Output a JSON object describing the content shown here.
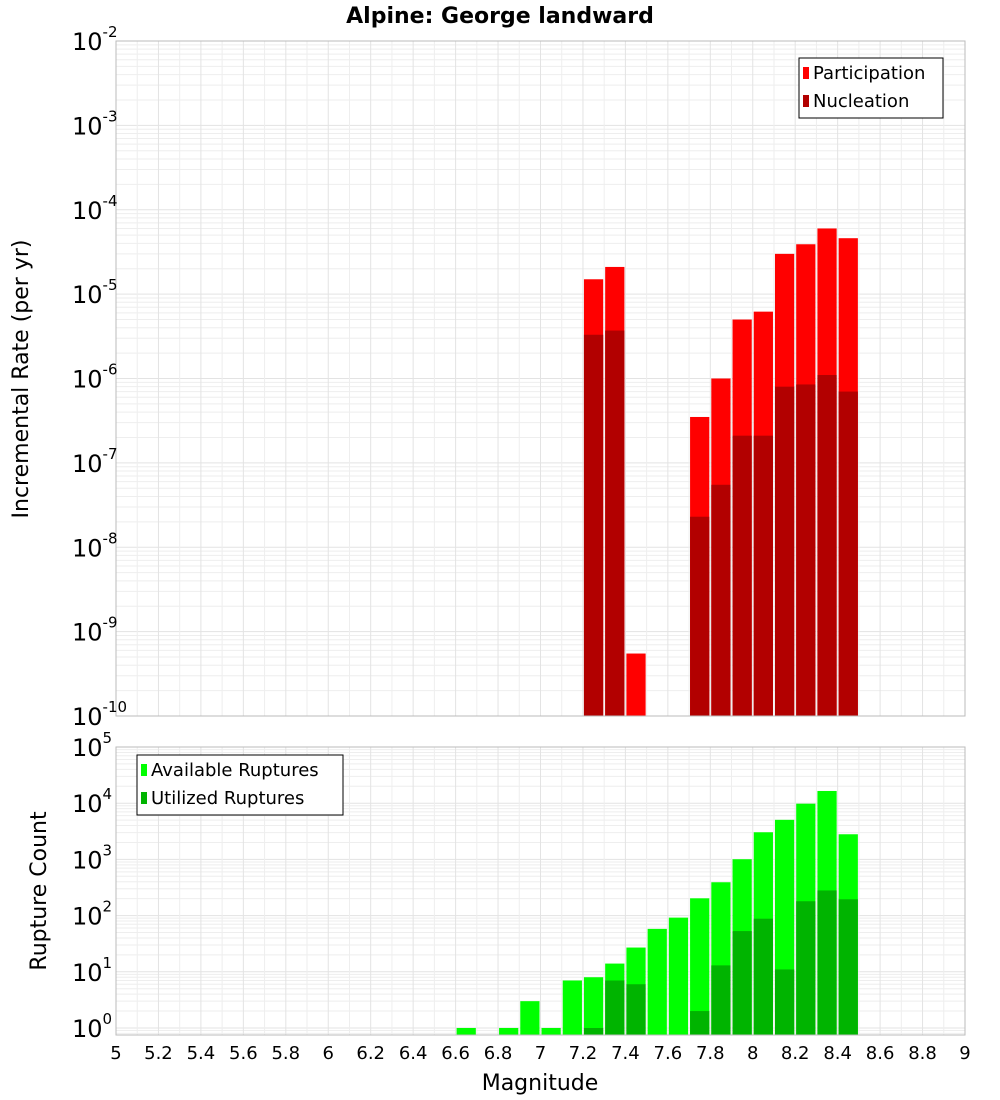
{
  "chart_data": [
    {
      "type": "bar",
      "title": "Alpine: George landward",
      "xlabel": "",
      "ylabel": "Incremental Rate (per yr)",
      "yscale": "log",
      "ylim": [
        1e-10,
        0.01
      ],
      "xlim": [
        5,
        9
      ],
      "grid": true,
      "legend_position": "top-right",
      "x": [
        7.25,
        7.35,
        7.45,
        7.75,
        7.85,
        7.95,
        8.05,
        8.15,
        8.25,
        8.35,
        8.45
      ],
      "series": [
        {
          "name": "Participation",
          "color": "#ff0000",
          "values": [
            1.5e-05,
            2.1e-05,
            5.5e-10,
            3.5e-07,
            1e-06,
            5e-06,
            6.2e-06,
            3e-05,
            3.9e-05,
            6e-05,
            4.6e-05
          ]
        },
        {
          "name": "Nucleation",
          "color": "#b20000",
          "values": [
            3.3e-06,
            3.7e-06,
            null,
            2.3e-08,
            5.5e-08,
            2.1e-07,
            2.1e-07,
            8e-07,
            8.5e-07,
            1.1e-06,
            7e-07
          ]
        }
      ]
    },
    {
      "type": "bar",
      "xlabel": "Magnitude",
      "ylabel": "Rupture Count",
      "yscale": "log",
      "ylim": [
        0.75,
        100000.0
      ],
      "xlim": [
        5,
        9
      ],
      "grid": true,
      "legend_position": "top-left",
      "x": [
        6.65,
        6.85,
        6.95,
        7.05,
        7.15,
        7.25,
        7.35,
        7.45,
        7.55,
        7.65,
        7.75,
        7.85,
        7.95,
        8.05,
        8.15,
        8.25,
        8.35,
        8.45
      ],
      "series": [
        {
          "name": "Available Ruptures",
          "color": "#00ff00",
          "values": [
            1,
            1,
            3,
            1,
            7,
            8,
            14,
            27,
            58,
            92,
            203,
            392,
            1007,
            3040,
            5060,
            9800,
            16500,
            2800
          ]
        },
        {
          "name": "Utilized Ruptures",
          "color": "#00b400",
          "values": [
            null,
            null,
            null,
            null,
            null,
            1,
            7,
            6,
            null,
            null,
            2,
            13,
            53,
            88,
            11,
            180,
            280,
            195
          ]
        }
      ]
    }
  ],
  "x_ticks": [
    "5",
    "5.2",
    "5.4",
    "5.6",
    "5.8",
    "6",
    "6.2",
    "6.4",
    "6.6",
    "6.8",
    "7",
    "7.2",
    "7.4",
    "7.6",
    "7.8",
    "8",
    "8.2",
    "8.4",
    "8.6",
    "8.8",
    "9"
  ],
  "top_y_ticks": [
    {
      "base": "10",
      "exp": "-2"
    },
    {
      "base": "10",
      "exp": "-3"
    },
    {
      "base": "10",
      "exp": "-4"
    },
    {
      "base": "10",
      "exp": "-5"
    },
    {
      "base": "10",
      "exp": "-6"
    },
    {
      "base": "10",
      "exp": "-7"
    },
    {
      "base": "10",
      "exp": "-8"
    },
    {
      "base": "10",
      "exp": "-9"
    },
    {
      "base": "10",
      "exp": "-10"
    }
  ],
  "bottom_y_ticks": [
    {
      "base": "10",
      "exp": "5"
    },
    {
      "base": "10",
      "exp": "4"
    },
    {
      "base": "10",
      "exp": "3"
    },
    {
      "base": "10",
      "exp": "2"
    },
    {
      "base": "10",
      "exp": "1"
    },
    {
      "base": "10",
      "exp": "0"
    }
  ]
}
